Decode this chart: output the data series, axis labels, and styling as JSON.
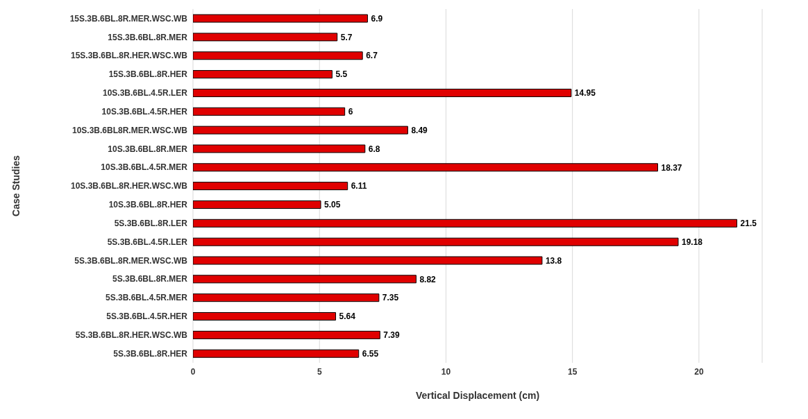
{
  "chart_data": {
    "type": "bar",
    "orientation": "horizontal",
    "xlabel": "Vertical Displacement (cm)",
    "ylabel": "Case Studies",
    "categories": [
      "15S.3B.6BL.8R.MER.WSC.WB",
      "15S.3B.6BL.8R.MER",
      "15S.3B.6BL.8R.HER.WSC.WB",
      "15S.3B.6BL.8R.HER",
      "10S.3B.6BL.4.5R.LER",
      "10S.3B.6BL.4.5R.HER",
      "10S.3B.6BL8R.MER.WSC.WB",
      "10S.3B.6BL.8R.MER",
      "10S.3B.6BL.4.5R.MER",
      "10S.3B.6BL.8R.HER.WSC.WB",
      "10S.3B.6BL.8R.HER",
      "5S.3B.6BL.8R.LER",
      "5S.3B.6BL.4.5R.LER",
      "5S.3B.6BL.8R.MER.WSC.WB",
      "5S.3B.6BL.8R.MER",
      "5S.3B.6BL.4.5R.MER",
      "5S.3B.6BL.4.5R.HER",
      "5S.3B.6BL.8R.HER.WSC.WB",
      "5S.3B.6BL.8R.HER"
    ],
    "values": [
      6.9,
      5.7,
      6.7,
      5.5,
      14.95,
      6,
      8.49,
      6.8,
      18.37,
      6.11,
      5.05,
      21.5,
      19.18,
      13.8,
      8.82,
      7.35,
      5.64,
      7.39,
      6.55
    ],
    "color": "#e00000",
    "data_labels": true,
    "xlim": [
      0,
      22.5
    ],
    "xticks": [
      0,
      5,
      10,
      15,
      20
    ],
    "grid": "x"
  }
}
